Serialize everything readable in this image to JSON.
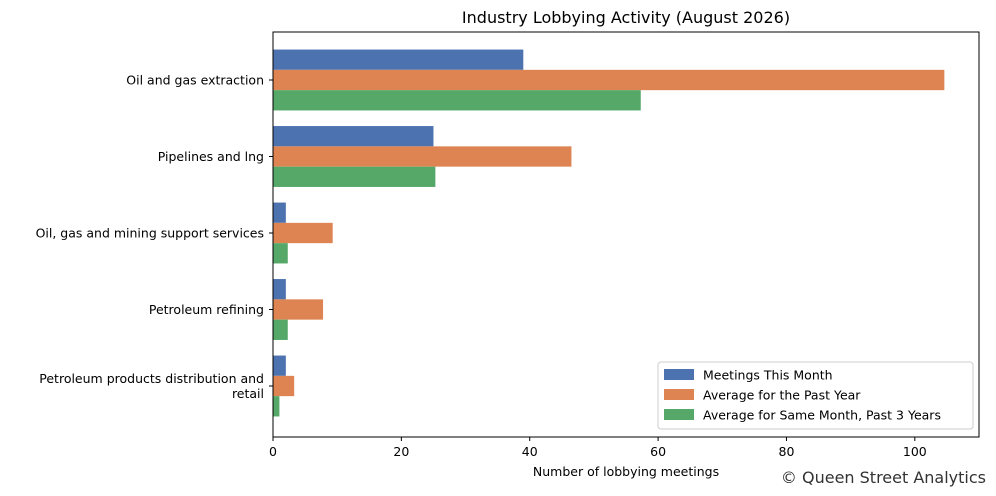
{
  "chart_data": {
    "type": "bar",
    "orientation": "horizontal",
    "title": "Industry Lobbying Activity (August 2026)",
    "xlabel": "Number of lobbying meetings",
    "ylabel": "",
    "xlim": [
      0,
      110
    ],
    "xticks": [
      0,
      20,
      40,
      60,
      80,
      100
    ],
    "grid": false,
    "legend_position": "bottom-right",
    "categories": [
      [
        "Oil and gas extraction"
      ],
      [
        "Pipelines and lng"
      ],
      [
        "Oil, gas and mining support services"
      ],
      [
        "Petroleum refining"
      ],
      [
        "Petroleum products distribution and",
        "retail"
      ]
    ],
    "series": [
      {
        "name": "Meetings This Month",
        "color": "#4c72b0",
        "values": [
          39,
          25,
          2,
          2,
          2
        ]
      },
      {
        "name": "Average for the Past Year",
        "color": "#dd8452",
        "values": [
          104.6,
          46.5,
          9.3,
          7.8,
          3.3
        ]
      },
      {
        "name": "Average for Same Month, Past 3 Years",
        "color": "#55a868",
        "values": [
          57.3,
          25.3,
          2.3,
          2.3,
          1.0
        ]
      }
    ]
  },
  "watermark": "© Queen Street Analytics"
}
